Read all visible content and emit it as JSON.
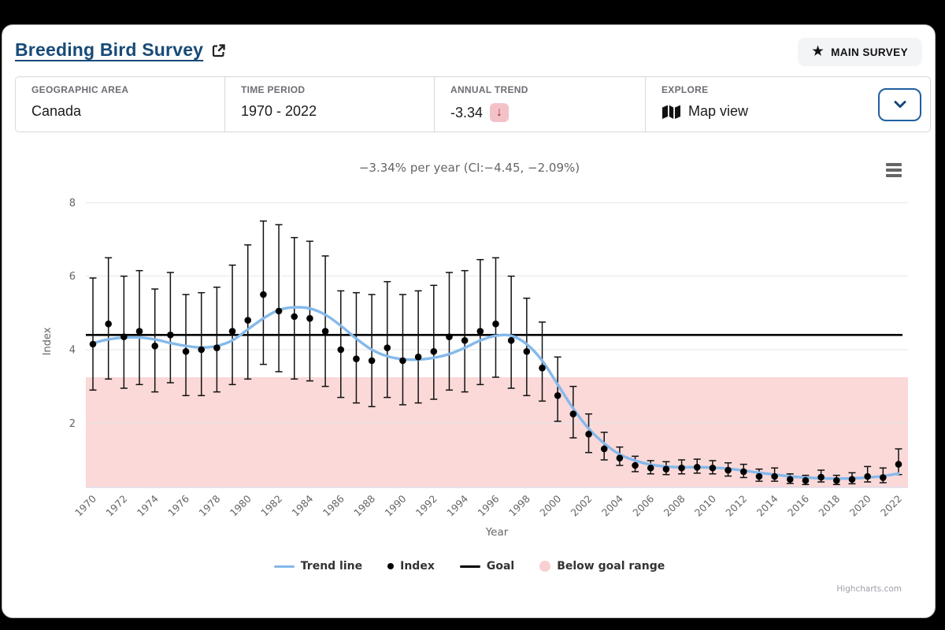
{
  "header": {
    "title": "Breeding Bird Survey",
    "main_survey_button": {
      "label": "MAIN SURVEY"
    }
  },
  "info_bar": {
    "geographic_area": {
      "label": "GEOGRAPHIC AREA",
      "value": "Canada"
    },
    "time_period": {
      "label": "TIME PERIOD",
      "value": "1970 - 2022"
    },
    "annual_trend": {
      "label": "ANNUAL TREND",
      "value": "-3.34"
    },
    "explore": {
      "label": "EXPLORE",
      "value": "Map view"
    }
  },
  "chart": {
    "credits": "Highcharts.com"
  },
  "chart_data": {
    "type": "line",
    "title": "−3.34% per year (CI:−4.45, −2.09%)",
    "xlabel": "Year",
    "ylabel": "Index",
    "ylim": [
      0.25,
      8.2
    ],
    "yticks": [
      2,
      4,
      6,
      8
    ],
    "xticks": [
      "1970",
      "1972",
      "1974",
      "1976",
      "1978",
      "1980",
      "1982",
      "1984",
      "1986",
      "1988",
      "1990",
      "1992",
      "1994",
      "1996",
      "1998",
      "2000",
      "2002",
      "2004",
      "2006",
      "2008",
      "2010",
      "2012",
      "2014",
      "2016",
      "2018",
      "2020",
      "2022"
    ],
    "grid": true,
    "legend_position": "bottom",
    "legend": [
      "Trend line",
      "Index",
      "Goal",
      "Below goal range"
    ],
    "goal": 4.4,
    "below_goal_max": 3.25,
    "colors": {
      "trend": "#85b9ea",
      "index": "#000000",
      "goal": "#000000",
      "below_goal": "#fbd9d9",
      "legend_below_goal": "#f8d0d2",
      "grid_line": "#e6e6e6",
      "axis_line": "#ccd6eb",
      "axis_label": "#666666"
    },
    "years": [
      1970,
      1971,
      1972,
      1973,
      1974,
      1975,
      1976,
      1977,
      1978,
      1979,
      1980,
      1981,
      1982,
      1983,
      1984,
      1985,
      1986,
      1987,
      1988,
      1989,
      1990,
      1991,
      1992,
      1993,
      1994,
      1995,
      1996,
      1997,
      1998,
      1999,
      2000,
      2001,
      2002,
      2003,
      2004,
      2005,
      2006,
      2007,
      2008,
      2009,
      2010,
      2011,
      2012,
      2013,
      2014,
      2015,
      2016,
      2017,
      2018,
      2019,
      2020,
      2021,
      2022
    ],
    "series": [
      {
        "name": "Index",
        "values": [
          4.15,
          4.7,
          4.35,
          4.5,
          4.1,
          4.4,
          3.95,
          4.0,
          4.05,
          4.5,
          4.8,
          5.5,
          5.05,
          4.9,
          4.85,
          4.5,
          4.0,
          3.75,
          3.7,
          4.05,
          3.7,
          3.8,
          3.95,
          4.35,
          4.25,
          4.5,
          4.7,
          4.25,
          3.95,
          3.5,
          2.75,
          2.25,
          1.7,
          1.3,
          1.05,
          0.85,
          0.78,
          0.75,
          0.78,
          0.8,
          0.78,
          0.72,
          0.68,
          0.55,
          0.55,
          0.47,
          0.44,
          0.53,
          0.44,
          0.47,
          0.55,
          0.52,
          0.88
        ]
      },
      {
        "name": "Index CI low",
        "values": [
          2.9,
          3.2,
          2.95,
          3.05,
          2.85,
          3.1,
          2.75,
          2.75,
          2.85,
          3.05,
          3.2,
          3.6,
          3.4,
          3.2,
          3.15,
          3.0,
          2.7,
          2.55,
          2.45,
          2.7,
          2.5,
          2.55,
          2.65,
          2.9,
          2.85,
          3.05,
          3.25,
          2.95,
          2.75,
          2.6,
          2.05,
          1.6,
          1.2,
          1.0,
          0.85,
          0.68,
          0.62,
          0.6,
          0.62,
          0.64,
          0.62,
          0.56,
          0.52,
          0.42,
          0.42,
          0.36,
          0.33,
          0.4,
          0.33,
          0.35,
          0.4,
          0.38,
          0.6
        ]
      },
      {
        "name": "Index CI high",
        "values": [
          5.95,
          6.5,
          6.0,
          6.15,
          5.65,
          6.1,
          5.5,
          5.55,
          5.7,
          6.3,
          6.85,
          7.5,
          7.4,
          7.05,
          6.95,
          6.55,
          5.6,
          5.55,
          5.5,
          5.85,
          5.5,
          5.6,
          5.75,
          6.1,
          6.15,
          6.45,
          6.5,
          6.0,
          5.4,
          4.75,
          3.8,
          3.0,
          2.25,
          1.75,
          1.35,
          1.1,
          0.98,
          0.95,
          1.0,
          1.02,
          0.98,
          0.92,
          0.88,
          0.75,
          0.78,
          0.62,
          0.58,
          0.72,
          0.58,
          0.65,
          0.82,
          0.78,
          1.3
        ]
      },
      {
        "name": "Trend line",
        "values": [
          4.18,
          4.28,
          4.33,
          4.33,
          4.28,
          4.18,
          4.1,
          4.06,
          4.1,
          4.25,
          4.55,
          4.85,
          5.08,
          5.15,
          5.12,
          4.95,
          4.65,
          4.3,
          4.0,
          3.82,
          3.74,
          3.73,
          3.78,
          3.88,
          4.05,
          4.25,
          4.38,
          4.38,
          4.15,
          3.7,
          3.05,
          2.4,
          1.85,
          1.45,
          1.15,
          0.98,
          0.87,
          0.82,
          0.8,
          0.8,
          0.79,
          0.76,
          0.71,
          0.65,
          0.6,
          0.55,
          0.52,
          0.5,
          0.49,
          0.5,
          0.52,
          0.56,
          0.63
        ]
      }
    ]
  }
}
